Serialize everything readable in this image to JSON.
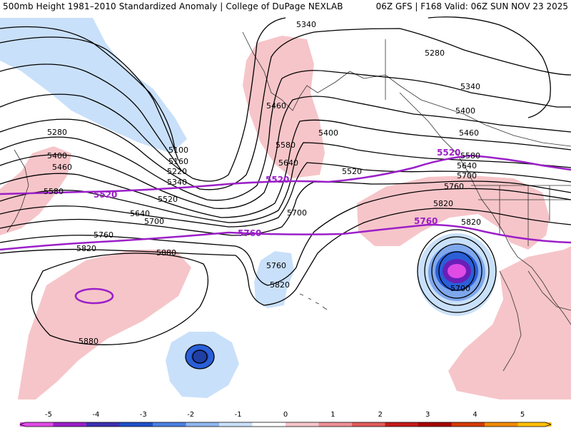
{
  "header": {
    "title_left": "500mb Height 1981–2010 Standardized Anomaly | College of DuPage NEXLAB",
    "title_right": "06Z GFS | F168 Valid: 06Z SUN NOV 23 2025"
  },
  "colors": {
    "background": "#ffffff",
    "positive_anomaly": "#f6c5c9",
    "weak_negative_anomaly": "#c9e0fa",
    "moderate_negative_anomaly": "#7fa7ec",
    "strong_negative_anomaly": "#2a5fd8",
    "extreme_negative_anomaly": "#e04be6",
    "highlight_contour": "#9b1fc8",
    "contour": "#000000",
    "coastline": "#333333"
  },
  "contour_labels": [
    {
      "text": "5340"
    },
    {
      "text": "5280"
    },
    {
      "text": "5340"
    },
    {
      "text": "5400"
    },
    {
      "text": "5460"
    },
    {
      "text": "5280"
    },
    {
      "text": "5400"
    },
    {
      "text": "5460"
    },
    {
      "text": "5580"
    },
    {
      "text": "5100"
    },
    {
      "text": "5160"
    },
    {
      "text": "5220"
    },
    {
      "text": "5340"
    },
    {
      "text": "5460"
    },
    {
      "text": "5580"
    },
    {
      "text": "5640"
    },
    {
      "text": "5400"
    },
    {
      "text": "5520"
    },
    {
      "text": "5520"
    },
    {
      "text": "5640"
    },
    {
      "text": "5700"
    },
    {
      "text": "5700"
    },
    {
      "text": "5760"
    },
    {
      "text": "5820"
    },
    {
      "text": "5760"
    },
    {
      "text": "5820"
    },
    {
      "text": "5880"
    },
    {
      "text": "5880"
    },
    {
      "text": "5580"
    },
    {
      "text": "5640"
    },
    {
      "text": "5700"
    },
    {
      "text": "5760"
    },
    {
      "text": "5820"
    },
    {
      "text": "5820"
    },
    {
      "text": "5700"
    }
  ],
  "highlight_labels": [
    {
      "text": "5520"
    },
    {
      "text": "5520"
    },
    {
      "text": "5520"
    },
    {
      "text": "5760"
    },
    {
      "text": "5760"
    }
  ],
  "colorbar": {
    "ticks": [
      "-5",
      "-4",
      "-3",
      "-2",
      "-1",
      "0",
      "1",
      "2",
      "3",
      "4",
      "5"
    ],
    "colors": [
      "#e04be6",
      "#9b1fc8",
      "#3b2fb0",
      "#1f4fc8",
      "#4a7fe0",
      "#8fb5ef",
      "#c9e0fa",
      "#ffffff",
      "#f6c5c9",
      "#ee8f96",
      "#e05a5a",
      "#c41a1a",
      "#a50000",
      "#d43b00",
      "#f08a00",
      "#ffbf00"
    ]
  }
}
